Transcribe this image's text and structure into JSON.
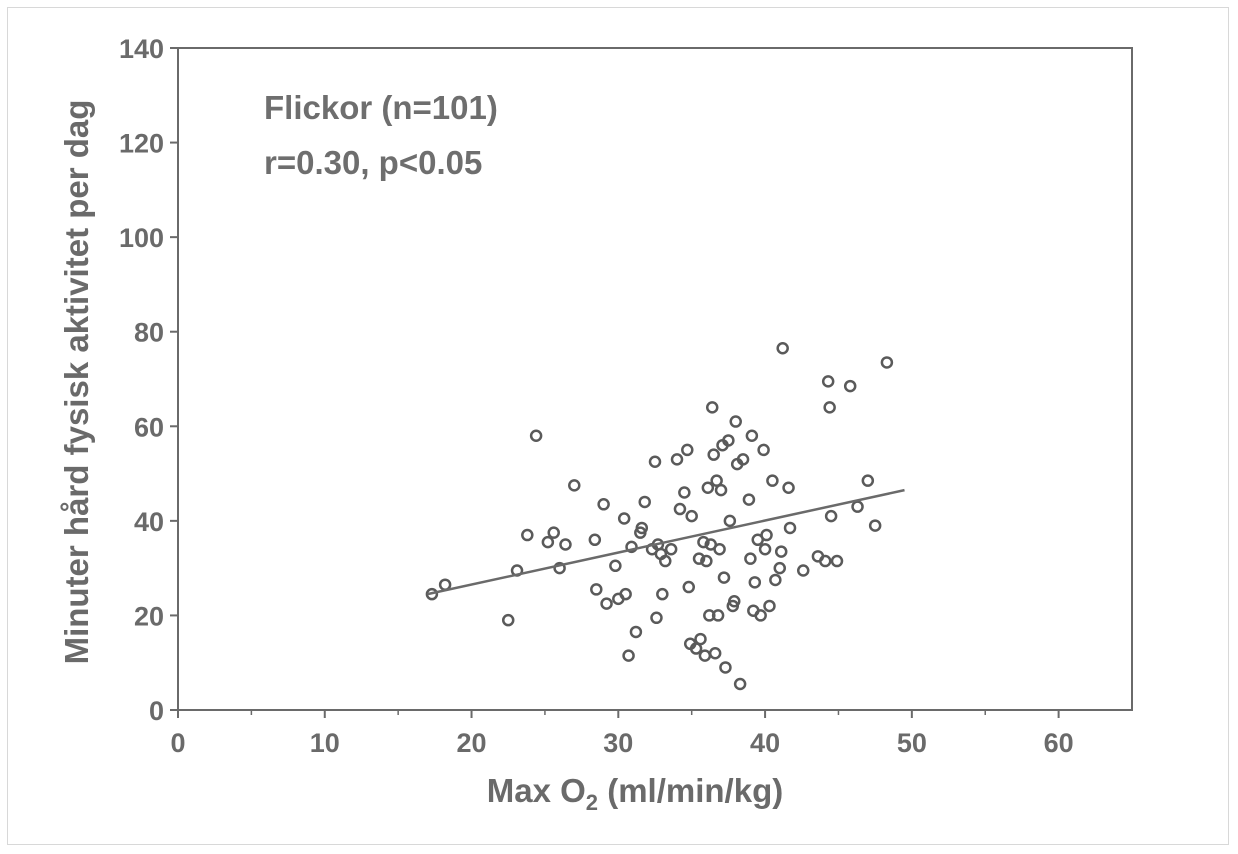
{
  "colors": {
    "axis": "#6a6a6a",
    "marker": "#5a5a5a",
    "text": "#6a6a6a",
    "trend": "#6a6a6a"
  },
  "chart_data": {
    "type": "scatter",
    "xlabel_prefix": "Max O",
    "xlabel_sub": "2",
    "xlabel_suffix": " (ml/min/kg)",
    "ylabel": "Minuter hård fysisk aktivitet per dag",
    "annotations": [
      "Flickor (n=101)",
      "r=0.30, p<0.05"
    ],
    "xlim": [
      0,
      65
    ],
    "ylim": [
      0,
      140
    ],
    "x_ticks": [
      0,
      10,
      20,
      30,
      40,
      50,
      60
    ],
    "y_ticks": [
      0,
      20,
      40,
      60,
      80,
      100,
      120,
      140
    ],
    "grid": false,
    "trendline": {
      "x": [
        17,
        49.5
      ],
      "y": [
        24.5,
        46.5
      ]
    },
    "points": [
      [
        17.3,
        24.5
      ],
      [
        18.2,
        26.5
      ],
      [
        22.5,
        19
      ],
      [
        23.1,
        29.5
      ],
      [
        23.8,
        37
      ],
      [
        24.4,
        58
      ],
      [
        25.2,
        35.5
      ],
      [
        25.6,
        37.5
      ],
      [
        26.0,
        30
      ],
      [
        26.4,
        35
      ],
      [
        27.0,
        47.5
      ],
      [
        28.4,
        36
      ],
      [
        28.5,
        25.5
      ],
      [
        29.0,
        43.5
      ],
      [
        29.2,
        22.5
      ],
      [
        29.8,
        30.5
      ],
      [
        30.0,
        23.5
      ],
      [
        30.4,
        40.5
      ],
      [
        30.5,
        24.5
      ],
      [
        30.7,
        11.5
      ],
      [
        30.9,
        34.5
      ],
      [
        31.2,
        16.5
      ],
      [
        31.5,
        37.5
      ],
      [
        31.6,
        38.5
      ],
      [
        31.8,
        44
      ],
      [
        32.3,
        34
      ],
      [
        32.5,
        52.5
      ],
      [
        32.6,
        19.5
      ],
      [
        32.7,
        35
      ],
      [
        32.9,
        33
      ],
      [
        33.0,
        24.5
      ],
      [
        33.2,
        31.5
      ],
      [
        33.6,
        34
      ],
      [
        34.0,
        53
      ],
      [
        34.2,
        42.5
      ],
      [
        34.5,
        46
      ],
      [
        34.7,
        55
      ],
      [
        34.8,
        26
      ],
      [
        34.9,
        14
      ],
      [
        35.0,
        41
      ],
      [
        35.3,
        13
      ],
      [
        35.5,
        32
      ],
      [
        35.6,
        15
      ],
      [
        35.8,
        35.5
      ],
      [
        35.9,
        11.5
      ],
      [
        36.0,
        31.5
      ],
      [
        36.1,
        47
      ],
      [
        36.2,
        20
      ],
      [
        36.3,
        35
      ],
      [
        36.4,
        64
      ],
      [
        36.5,
        54
      ],
      [
        36.6,
        12
      ],
      [
        36.7,
        48.5
      ],
      [
        36.8,
        20
      ],
      [
        36.9,
        34
      ],
      [
        37.0,
        46.5
      ],
      [
        37.1,
        56
      ],
      [
        37.2,
        28
      ],
      [
        37.3,
        9
      ],
      [
        37.5,
        57
      ],
      [
        37.6,
        40
      ],
      [
        37.8,
        22
      ],
      [
        37.9,
        23
      ],
      [
        38.0,
        61
      ],
      [
        38.1,
        52
      ],
      [
        38.3,
        5.5
      ],
      [
        38.5,
        53
      ],
      [
        38.9,
        44.5
      ],
      [
        39.0,
        32
      ],
      [
        39.1,
        58
      ],
      [
        39.2,
        21
      ],
      [
        39.3,
        27
      ],
      [
        39.5,
        36
      ],
      [
        39.7,
        20
      ],
      [
        39.9,
        55
      ],
      [
        40.0,
        34
      ],
      [
        40.1,
        37
      ],
      [
        40.3,
        22
      ],
      [
        40.5,
        48.5
      ],
      [
        40.7,
        27.5
      ],
      [
        41.0,
        30
      ],
      [
        41.1,
        33.5
      ],
      [
        41.2,
        76.5
      ],
      [
        41.6,
        47
      ],
      [
        41.7,
        38.5
      ],
      [
        42.6,
        29.5
      ],
      [
        43.6,
        32.5
      ],
      [
        44.1,
        31.5
      ],
      [
        44.3,
        69.5
      ],
      [
        44.4,
        64
      ],
      [
        44.5,
        41
      ],
      [
        44.9,
        31.5
      ],
      [
        45.8,
        68.5
      ],
      [
        46.3,
        43
      ],
      [
        47.0,
        48.5
      ],
      [
        47.5,
        39
      ],
      [
        48.3,
        73.5
      ]
    ]
  }
}
